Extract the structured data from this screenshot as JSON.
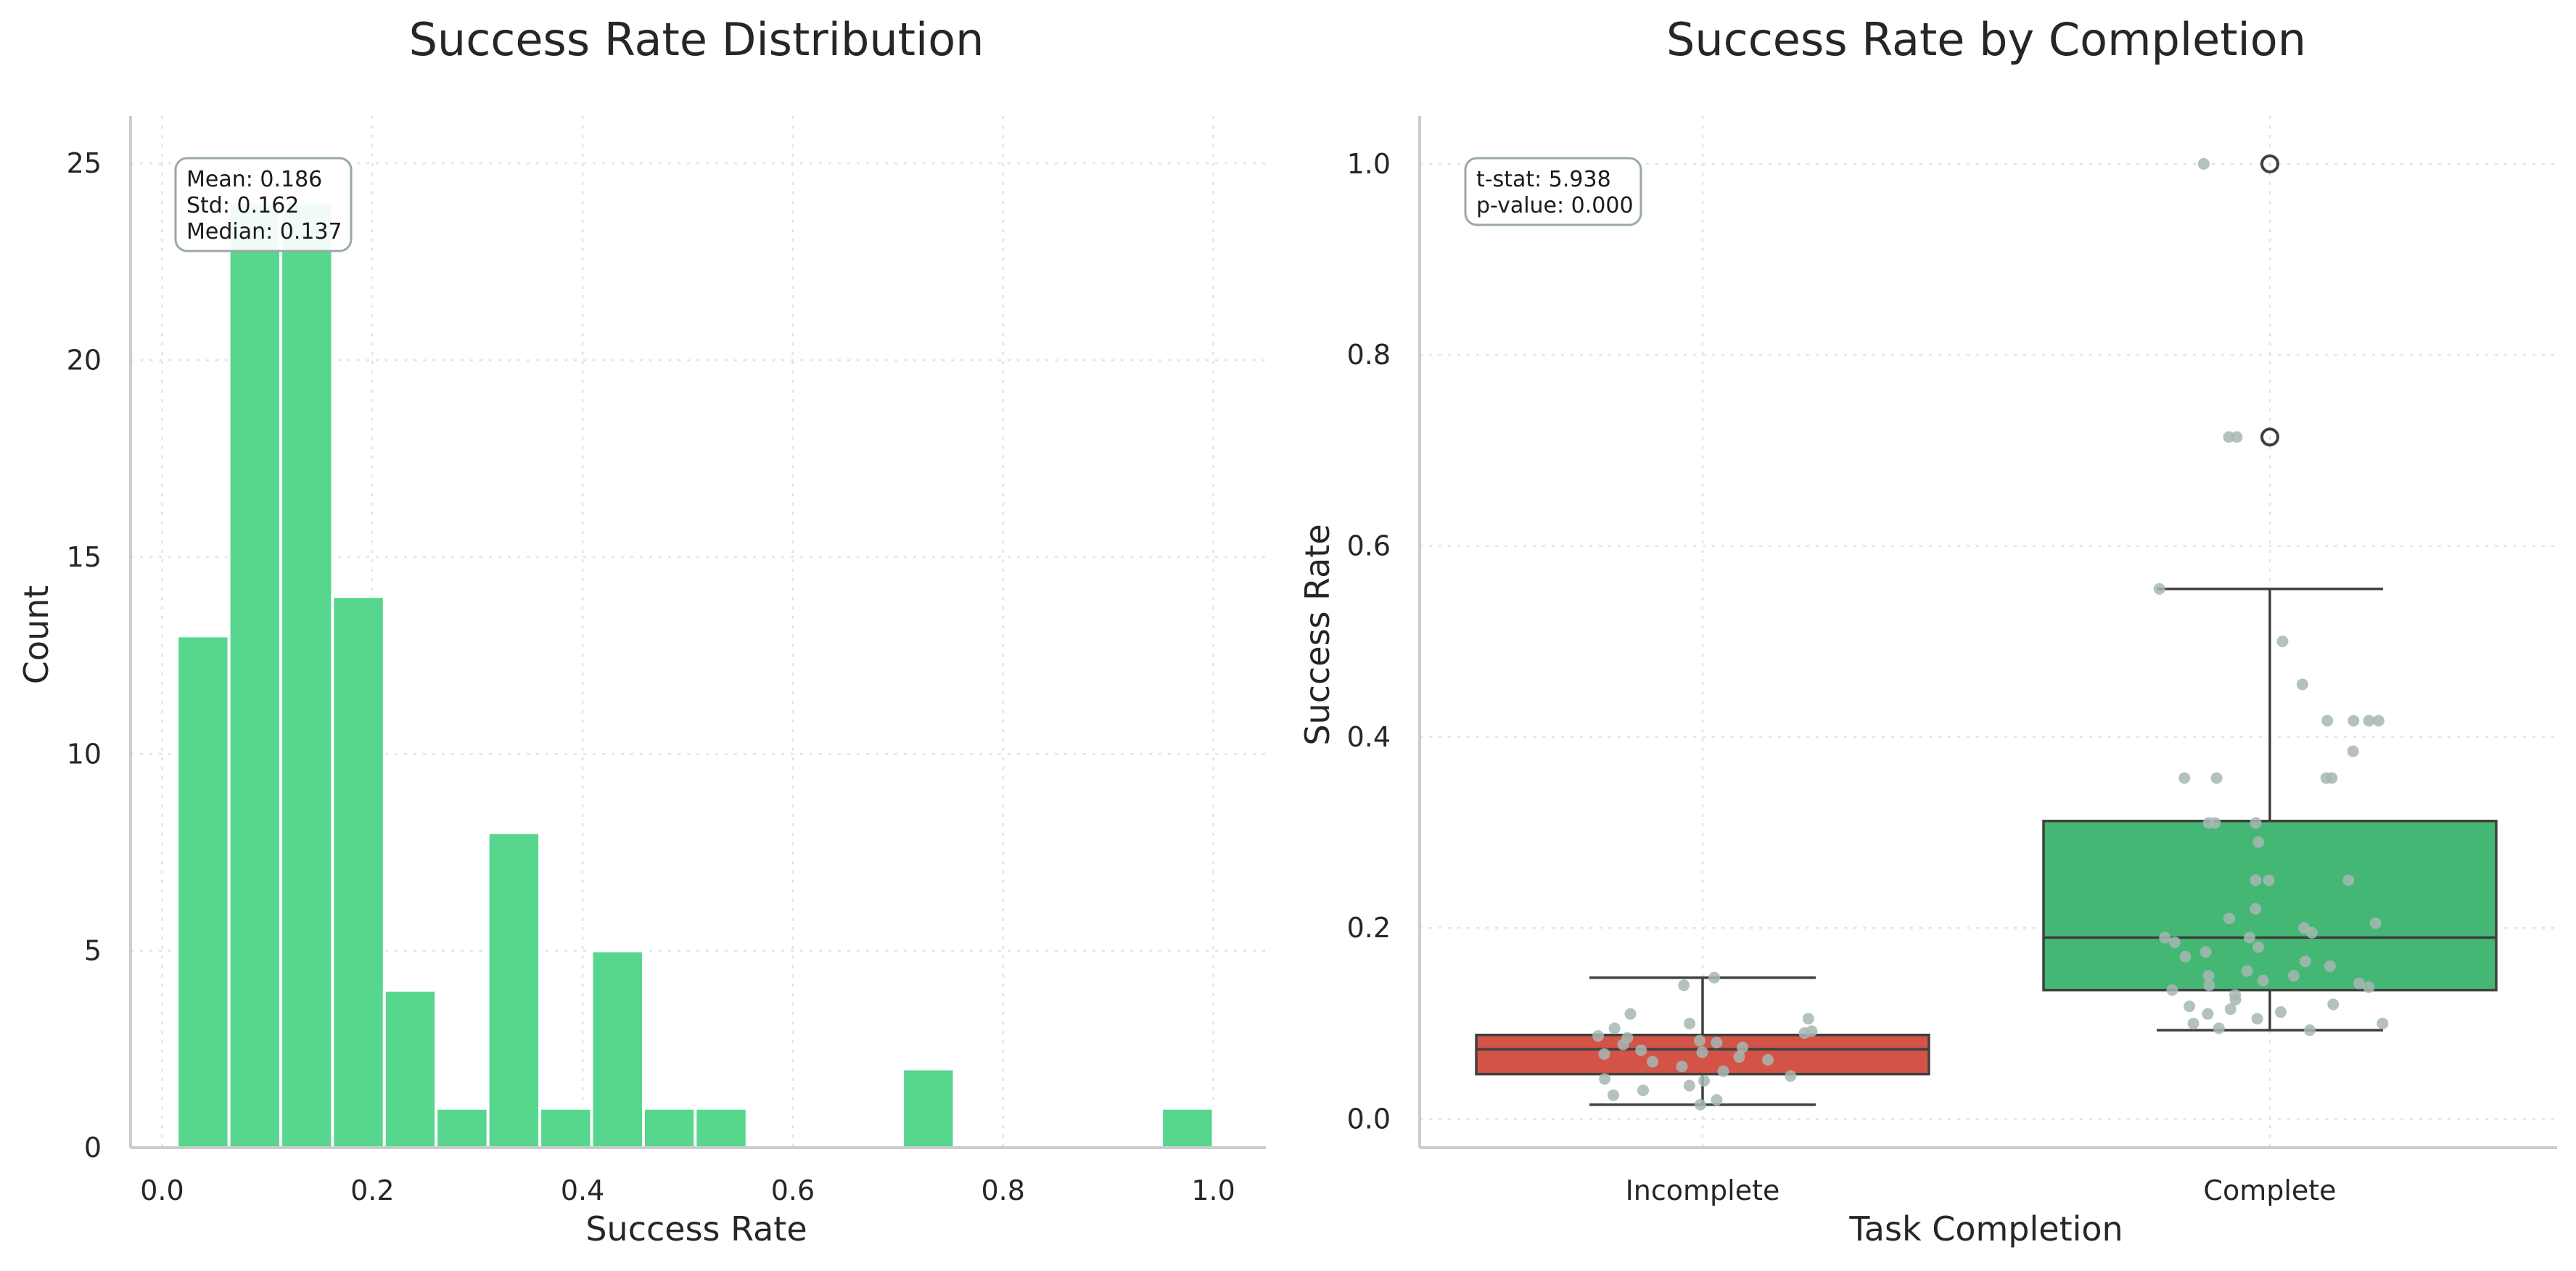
{
  "colors": {
    "histogram": "#57d68d",
    "incomplete": "#d35447",
    "complete": "#43b773",
    "box_line": "#404040",
    "jitter": "#a6b7b2",
    "stat_box_edge": "#9aa9a6"
  },
  "chart_data": [
    {
      "type": "bar",
      "subtype": "histogram",
      "title": "Success Rate Distribution",
      "xlabel": "Success Rate",
      "ylabel": "Count",
      "xlim": [
        -0.03,
        1.05
      ],
      "ylim": [
        0,
        26.2
      ],
      "xticks": [
        "0.0",
        "0.2",
        "0.4",
        "0.6",
        "0.8",
        "1.0"
      ],
      "yticks": [
        "0",
        "5",
        "10",
        "15",
        "20",
        "25"
      ],
      "grid": true,
      "bin_width": 0.0493,
      "bins": [
        {
          "left": 0.0143,
          "count": 13
        },
        {
          "left": 0.0636,
          "count": 24
        },
        {
          "left": 0.1129,
          "count": 24
        },
        {
          "left": 0.1621,
          "count": 14
        },
        {
          "left": 0.2114,
          "count": 4
        },
        {
          "left": 0.2607,
          "count": 1
        },
        {
          "left": 0.31,
          "count": 8
        },
        {
          "left": 0.3593,
          "count": 1
        },
        {
          "left": 0.4086,
          "count": 5
        },
        {
          "left": 0.4579,
          "count": 1
        },
        {
          "left": 0.5071,
          "count": 1
        },
        {
          "left": 0.5564,
          "count": 0
        },
        {
          "left": 0.6057,
          "count": 0
        },
        {
          "left": 0.655,
          "count": 0
        },
        {
          "left": 0.7043,
          "count": 2
        },
        {
          "left": 0.7536,
          "count": 0
        },
        {
          "left": 0.8029,
          "count": 0
        },
        {
          "left": 0.8521,
          "count": 0
        },
        {
          "left": 0.9014,
          "count": 0
        },
        {
          "left": 0.9507,
          "count": 1
        }
      ],
      "stats": [
        "Mean: 0.186",
        "Std: 0.162",
        "Median: 0.137"
      ]
    },
    {
      "type": "box",
      "title": "Success Rate by Completion",
      "xlabel": "Task Completion",
      "ylabel": "Success Rate",
      "ylim": [
        -0.03,
        1.05
      ],
      "yticks": [
        "0.0",
        "0.2",
        "0.4",
        "0.6",
        "0.8",
        "1.0"
      ],
      "grid": true,
      "groups": [
        {
          "name": "Incomplete",
          "min": 0.015,
          "q1": 0.047,
          "median": 0.073,
          "q3": 0.088,
          "max": 0.148,
          "outliers": [],
          "points": [
            0.015,
            0.02,
            0.025,
            0.03,
            0.035,
            0.04,
            0.042,
            0.045,
            0.05,
            0.055,
            0.06,
            0.062,
            0.065,
            0.068,
            0.07,
            0.072,
            0.075,
            0.078,
            0.08,
            0.082,
            0.085,
            0.087,
            0.09,
            0.092,
            0.095,
            0.1,
            0.105,
            0.11,
            0.14,
            0.148
          ]
        },
        {
          "name": "Complete",
          "min": 0.093,
          "q1": 0.135,
          "median": 0.19,
          "q3": 0.312,
          "max": 0.555,
          "outliers": [
            1.0,
            0.714
          ],
          "points": [
            0.093,
            0.095,
            0.1,
            0.1,
            0.105,
            0.11,
            0.112,
            0.115,
            0.118,
            0.12,
            0.125,
            0.13,
            0.135,
            0.138,
            0.14,
            0.142,
            0.145,
            0.15,
            0.15,
            0.155,
            0.16,
            0.165,
            0.17,
            0.175,
            0.18,
            0.185,
            0.19,
            0.19,
            0.195,
            0.2,
            0.205,
            0.21,
            0.22,
            0.25,
            0.25,
            0.25,
            0.29,
            0.31,
            0.31,
            0.31,
            0.357,
            0.357,
            0.357,
            0.357,
            0.385,
            0.417,
            0.417,
            0.417,
            0.417,
            0.455,
            0.5,
            0.555,
            0.714,
            0.714,
            1.0
          ]
        }
      ],
      "stats": [
        "t-stat: 5.938",
        "p-value: 0.000"
      ]
    }
  ]
}
